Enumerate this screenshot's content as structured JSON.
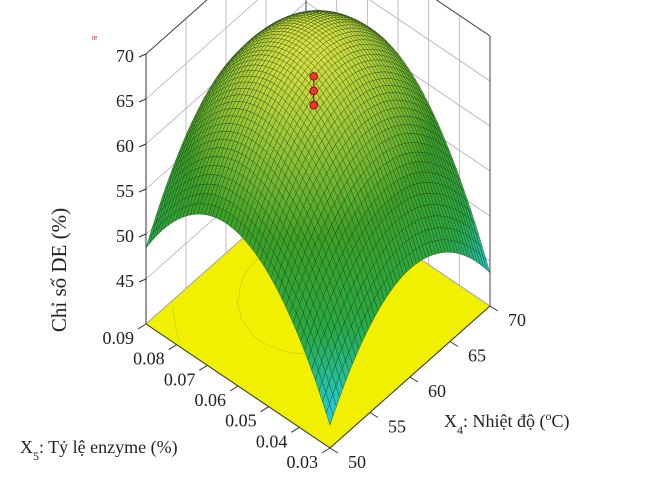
{
  "chart_data": {
    "type": "surface3d",
    "title": "",
    "x_axis": {
      "label_prefix": "X",
      "label_subscript": "4",
      "label_text": ": Nhiệt độ (",
      "label_unit_sup": "o",
      "label_unit": "C)",
      "range": [
        50,
        70
      ],
      "ticks": [
        "50",
        "55",
        "60",
        "65",
        "70"
      ]
    },
    "y_axis": {
      "label_prefix": "X",
      "label_subscript": "5",
      "label_text": ": Tỷ lệ enzyme (%)",
      "range": [
        0.03,
        0.09
      ],
      "ticks": [
        "0.03",
        "0.04",
        "0.05",
        "0.06",
        "0.07",
        "0.08",
        "0.09"
      ]
    },
    "z_axis": {
      "label": "Chỉ số DE (%)",
      "range": [
        40,
        70
      ],
      "ticks": [
        "45",
        "50",
        "55",
        "60",
        "65",
        "70"
      ]
    },
    "surface_corner_values": {
      "x50_y0.03": 43.5,
      "x70_y0.03": 51.5,
      "x50_y0.09": 53.0,
      "x70_y0.09": 52.5,
      "peak": 68.5
    },
    "design_points": [
      {
        "x": 61,
        "y": 0.064,
        "z": 64.8
      },
      {
        "x": 61,
        "y": 0.064,
        "z": 63.2
      },
      {
        "x": 61,
        "y": 0.064,
        "z": 61.6
      }
    ],
    "colors": {
      "surface_low": "#22c8d0",
      "surface_mid": "#28a832",
      "surface_high": "#d8e040",
      "floor": "#f0f000",
      "grid": "#b0b0b0",
      "point": "#ff3030"
    },
    "stray_mark": "ie"
  }
}
